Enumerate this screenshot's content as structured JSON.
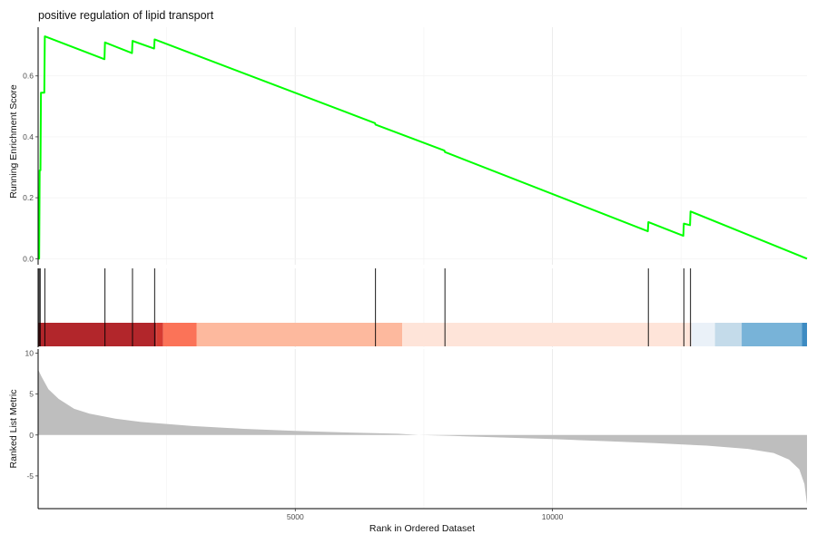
{
  "chart_data": {
    "type": "line",
    "title": "positive regulation of lipid transport",
    "xlabel": "Rank in Ordered Dataset",
    "xlim": [
      0,
      14950
    ],
    "x_ticks": [
      5000,
      10000
    ],
    "grid": true,
    "panels": {
      "running_score": {
        "ylabel": "Running Enrichment Score",
        "ylim": [
          -0.02,
          0.76
        ],
        "y_ticks": [
          0.0,
          0.2,
          0.4,
          0.6
        ],
        "color": "#00ff00",
        "points": [
          [
            0,
            0.0
          ],
          [
            20,
            0.0
          ],
          [
            30,
            0.29
          ],
          [
            45,
            0.29
          ],
          [
            55,
            0.545
          ],
          [
            120,
            0.545
          ],
          [
            130,
            0.73
          ],
          [
            1290,
            0.655
          ],
          [
            1300,
            0.71
          ],
          [
            1825,
            0.675
          ],
          [
            1835,
            0.715
          ],
          [
            2255,
            0.69
          ],
          [
            2265,
            0.72
          ],
          [
            6550,
            0.445
          ],
          [
            6560,
            0.44
          ],
          [
            7900,
            0.355
          ],
          [
            7910,
            0.35
          ],
          [
            11855,
            0.09
          ],
          [
            11865,
            0.12
          ],
          [
            12545,
            0.075
          ],
          [
            12555,
            0.115
          ],
          [
            12675,
            0.11
          ],
          [
            12685,
            0.155
          ],
          [
            14950,
            0.0
          ]
        ]
      },
      "hits": {
        "positions": [
          20,
          40,
          130,
          1300,
          1835,
          2265,
          6560,
          7910,
          11865,
          12555,
          12685
        ]
      },
      "rank_colorbar": {
        "segments": [
          {
            "start": 0,
            "end": 2300,
            "color": "#b2262b"
          },
          {
            "start": 2300,
            "end": 2430,
            "color": "#d63b32"
          },
          {
            "start": 2430,
            "end": 3080,
            "color": "#fb7358"
          },
          {
            "start": 3080,
            "end": 7080,
            "color": "#fdb99e"
          },
          {
            "start": 7080,
            "end": 12700,
            "color": "#fee4d9"
          },
          {
            "start": 12700,
            "end": 13160,
            "color": "#eaf1f8"
          },
          {
            "start": 13160,
            "end": 13680,
            "color": "#c4dbea"
          },
          {
            "start": 13680,
            "end": 14850,
            "color": "#78b3d8"
          },
          {
            "start": 14850,
            "end": 14950,
            "color": "#3d8bc2"
          }
        ]
      },
      "ranked_metric": {
        "ylabel": "Ranked List Metric",
        "ylim": [
          -9,
          10.5
        ],
        "y_ticks": [
          -5,
          0,
          5,
          10
        ],
        "color": "#bebebe",
        "points": [
          [
            0,
            8.0
          ],
          [
            60,
            7.2
          ],
          [
            200,
            5.6
          ],
          [
            400,
            4.4
          ],
          [
            700,
            3.2
          ],
          [
            1000,
            2.6
          ],
          [
            1500,
            2.0
          ],
          [
            2000,
            1.6
          ],
          [
            3000,
            1.1
          ],
          [
            4000,
            0.75
          ],
          [
            5000,
            0.5
          ],
          [
            6000,
            0.3
          ],
          [
            7000,
            0.15
          ],
          [
            7400,
            0.0
          ],
          [
            8000,
            -0.1
          ],
          [
            9000,
            -0.3
          ],
          [
            10000,
            -0.5
          ],
          [
            11000,
            -0.75
          ],
          [
            12000,
            -1.0
          ],
          [
            13000,
            -1.3
          ],
          [
            13800,
            -1.7
          ],
          [
            14300,
            -2.2
          ],
          [
            14600,
            -3.0
          ],
          [
            14800,
            -4.2
          ],
          [
            14900,
            -6.0
          ],
          [
            14950,
            -8.5
          ]
        ]
      }
    }
  }
}
